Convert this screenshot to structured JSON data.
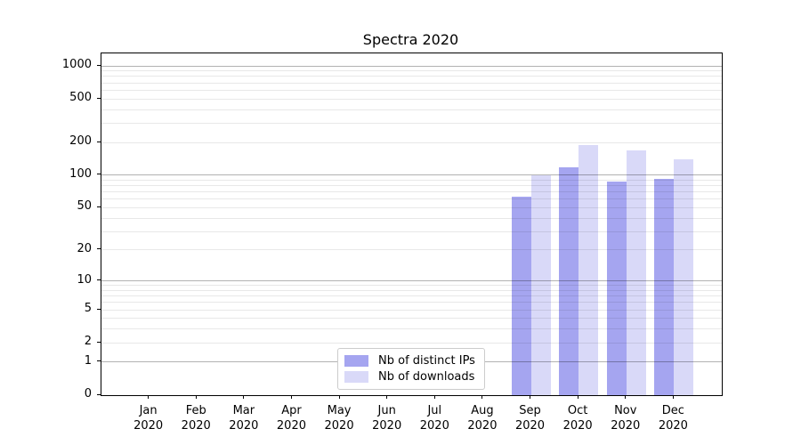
{
  "title": "Spectra 2020",
  "chart_data": {
    "type": "bar",
    "title": "Spectra 2020",
    "x_categories": [
      "Jan 2020",
      "Feb 2020",
      "Mar 2020",
      "Apr 2020",
      "May 2020",
      "Jun 2020",
      "Jul 2020",
      "Aug 2020",
      "Sep 2020",
      "Oct 2020",
      "Nov 2020",
      "Dec 2020"
    ],
    "series": [
      {
        "name": "Nb of distinct IPs",
        "color": "#a5a5f0",
        "values": [
          null,
          null,
          null,
          null,
          null,
          null,
          null,
          null,
          63,
          119,
          87,
          92
        ]
      },
      {
        "name": "Nb of downloads",
        "color": "#d9d9f8",
        "values": [
          null,
          null,
          null,
          null,
          null,
          null,
          null,
          null,
          100,
          188,
          170,
          139
        ]
      }
    ],
    "y_ticks": [
      0,
      1,
      2,
      5,
      10,
      20,
      50,
      100,
      200,
      500,
      1000
    ],
    "y_scale": "log10(1+value)",
    "ylim": [
      0,
      1300
    ],
    "grid": "both",
    "legend_position": "lower center"
  },
  "legend": {
    "items": [
      {
        "label": "Nb of distinct IPs",
        "color": "#a5a5f0"
      },
      {
        "label": "Nb of downloads",
        "color": "#d9d9f8"
      }
    ]
  },
  "colors": {
    "background": "#ffffff",
    "axis": "#000000",
    "grid_major": "rgba(0,0,0,0.30)",
    "grid_minor": "rgba(0,0,0,0.09)",
    "tick_label": "#000000"
  }
}
